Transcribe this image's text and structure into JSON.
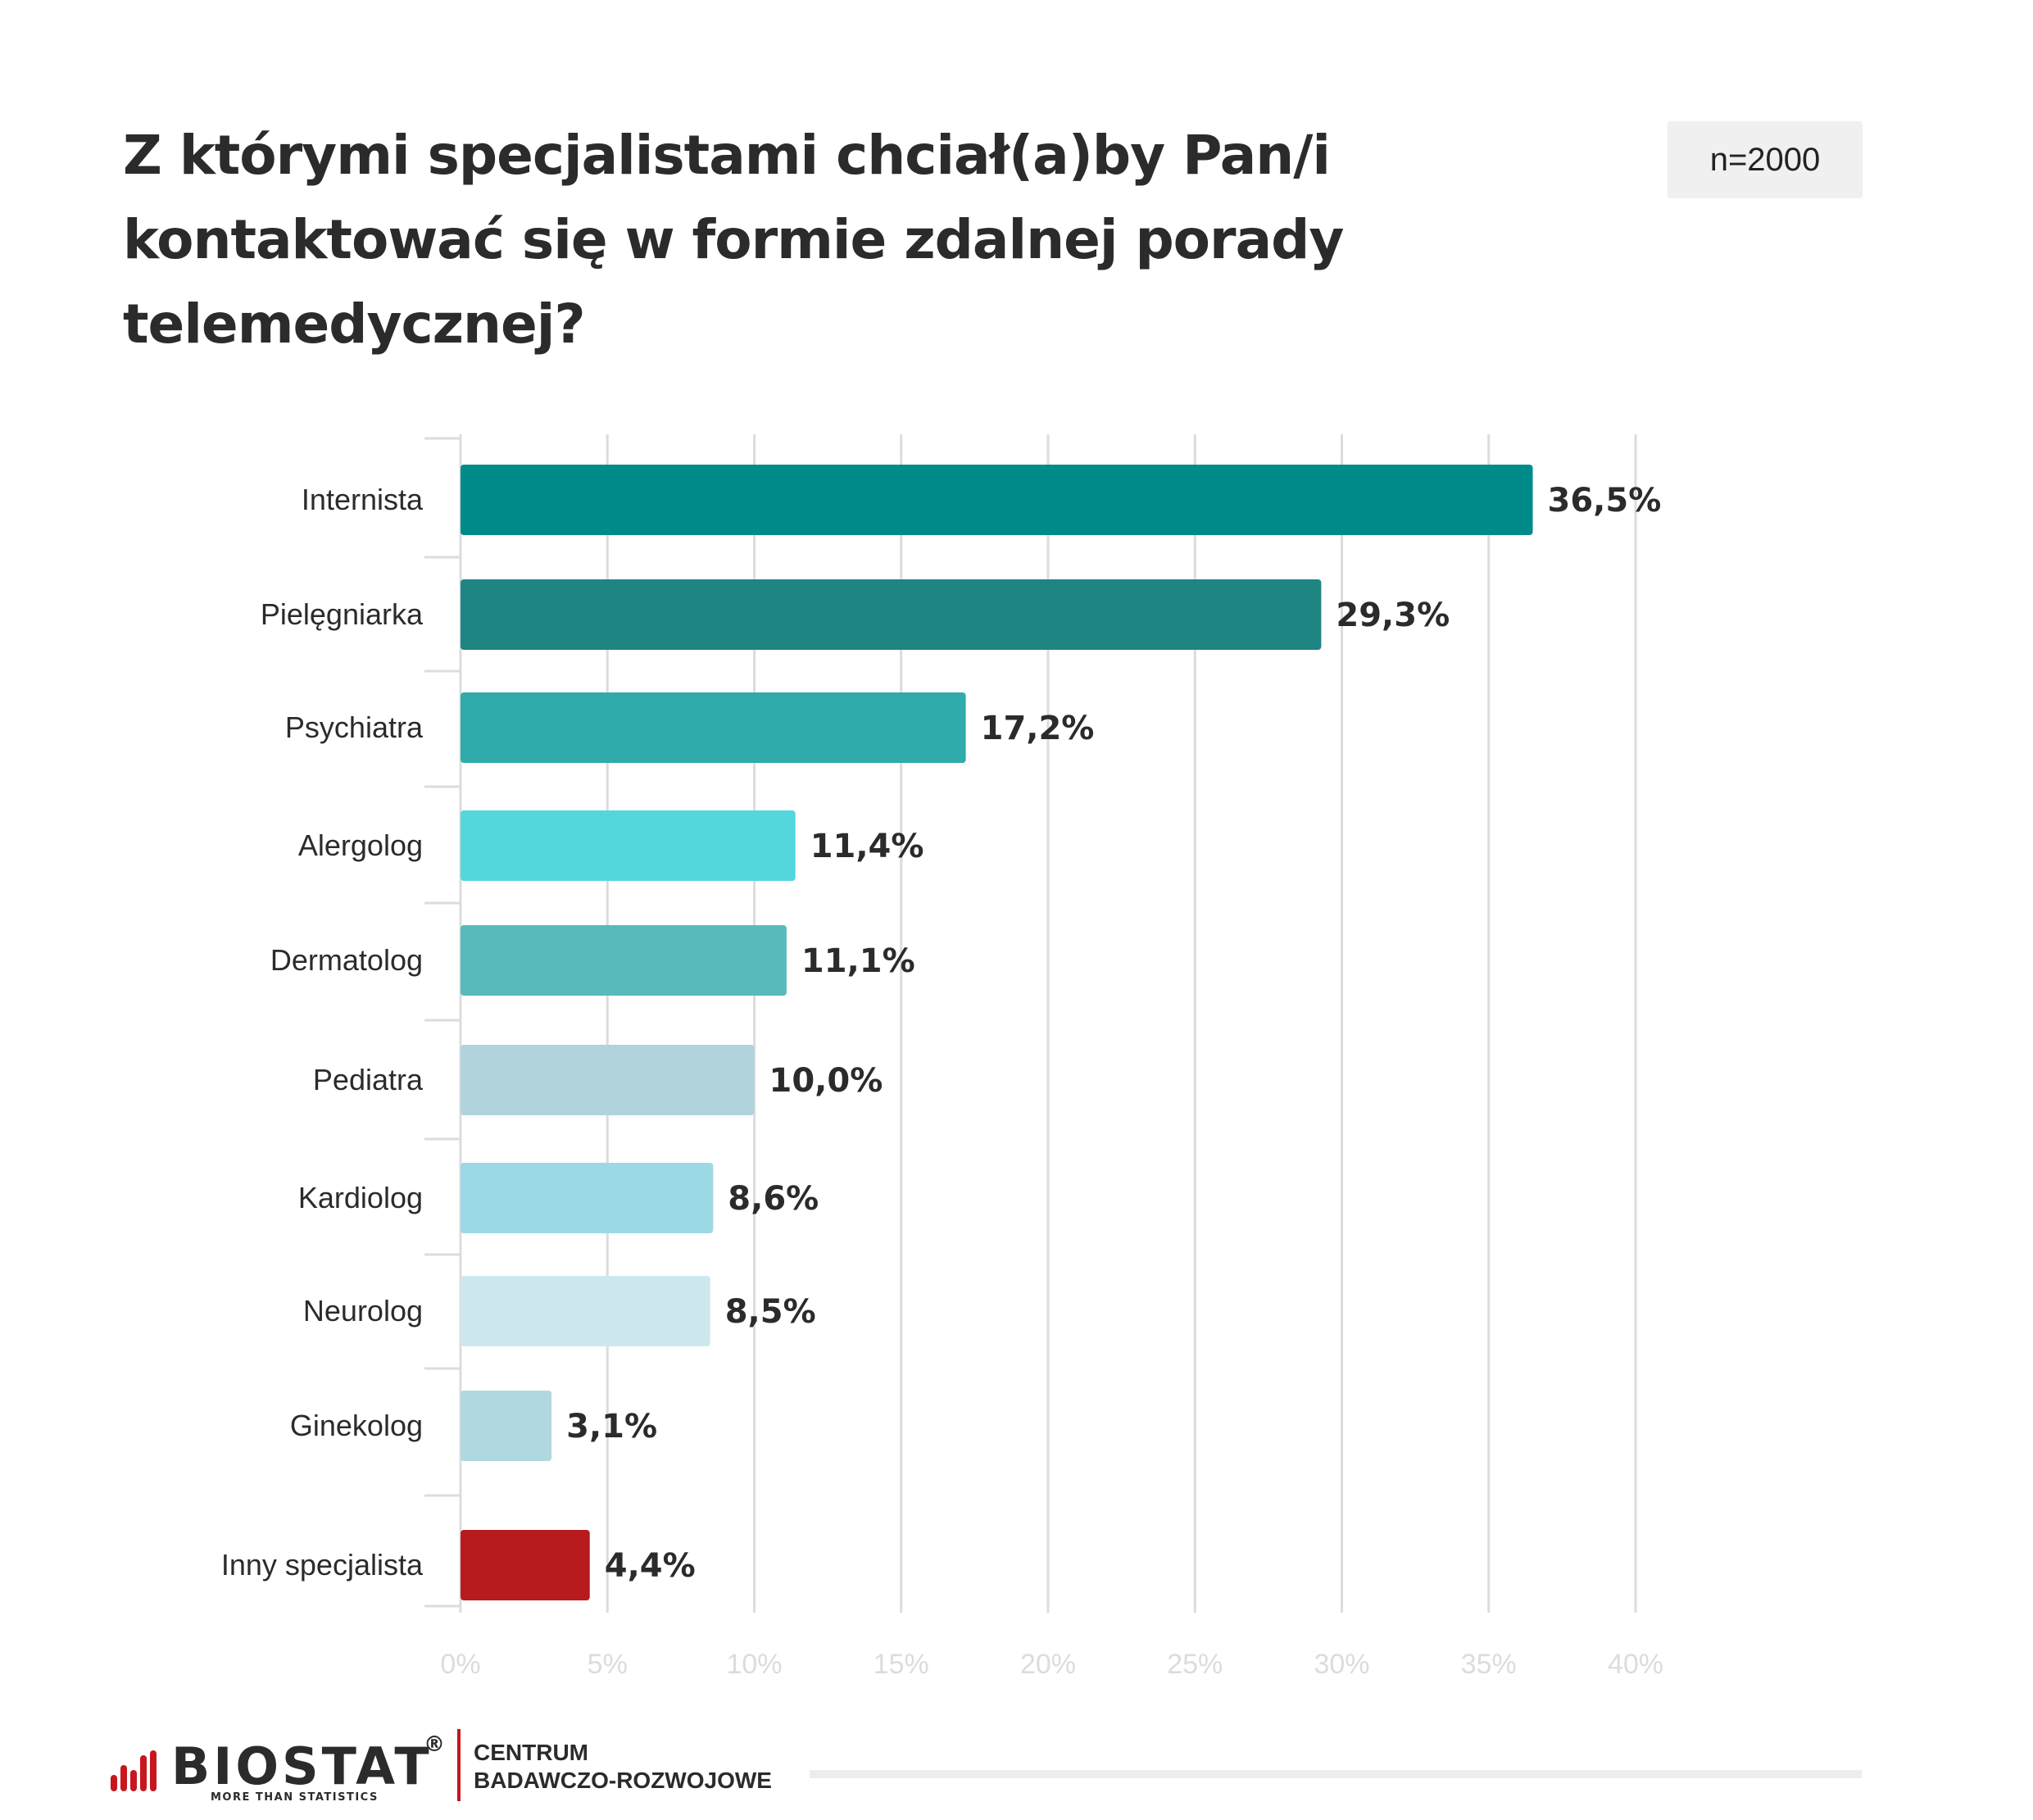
{
  "title": "Z którymi specjalistami chciał(a)by Pan/i kontaktować się w formie zdalnej porady telemedycznej?",
  "sample_badge": "n=2000",
  "footer": {
    "brand": "BIOSTAT",
    "brand_registered": "®",
    "tagline": "MORE THAN STATISTICS",
    "center_line1": "CENTRUM",
    "center_line2": "BADAWCZO-ROZWOJOWE",
    "brand_color": "#c8161d"
  },
  "chart_data": {
    "type": "bar",
    "orientation": "horizontal",
    "title": "Z którymi specjalistami chciał(a)by Pan/i kontaktować się w formie zdalnej porady telemedycznej?",
    "xlabel": "",
    "ylabel": "",
    "xlim": [
      0,
      40
    ],
    "x_ticks": [
      "0%",
      "5%",
      "10%",
      "15%",
      "20%",
      "25%",
      "30%",
      "35%",
      "40%"
    ],
    "grid": true,
    "legend": "none",
    "categories": [
      "Internista",
      "Pielęgniarka",
      "Psychiatra",
      "Alergolog",
      "Dermatolog",
      "Pediatra",
      "Kardiolog",
      "Neurolog",
      "Ginekolog",
      "Inny specjalista"
    ],
    "values": [
      36.5,
      29.3,
      17.2,
      11.4,
      11.1,
      10.0,
      8.6,
      8.5,
      3.1,
      4.4
    ],
    "value_labels": [
      "36,5%",
      "29,3%",
      "17,2%",
      "11,4%",
      "11,1%",
      "10,0%",
      "8,6%",
      "8,5%",
      "3,1%",
      "4,4%"
    ],
    "colors": [
      "#008b8b",
      "#1e8583",
      "#2fabab",
      "#53d6dc",
      "#56bbba",
      "#b0d3dc",
      "#9dd8e5",
      "#cce8ee",
      "#b1d8e0",
      "#b71b1e"
    ]
  }
}
